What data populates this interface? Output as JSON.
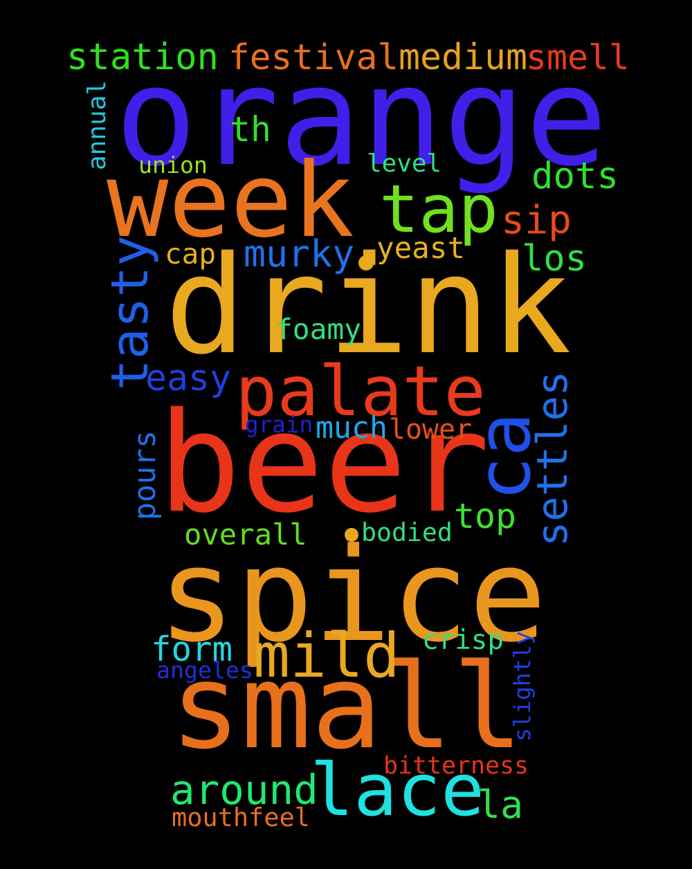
{
  "words": [
    {
      "id": "orange",
      "text": "orange",
      "color": "#4020e8"
    },
    {
      "id": "drink",
      "text": "drink",
      "color": "#e8a820"
    },
    {
      "id": "beer",
      "text": "beer",
      "color": "#e83418"
    },
    {
      "id": "spice",
      "text": "spice",
      "color": "#e8961e"
    },
    {
      "id": "small",
      "text": "small",
      "color": "#e8701c"
    },
    {
      "id": "week",
      "text": "week",
      "color": "#e87420"
    },
    {
      "id": "palate",
      "text": "palate",
      "color": "#e83a1c"
    },
    {
      "id": "lace",
      "text": "lace",
      "color": "#20e0e0"
    },
    {
      "id": "tap",
      "text": "tap",
      "color": "#70e020"
    },
    {
      "id": "mild",
      "text": "mild",
      "color": "#e8a820"
    },
    {
      "id": "ca",
      "text": "ca",
      "color": "#2050e8"
    },
    {
      "id": "tasty",
      "text": "tasty",
      "color": "#2060e8"
    },
    {
      "id": "settles",
      "text": "settles",
      "color": "#2070e8"
    },
    {
      "id": "station",
      "text": "station",
      "color": "#30e020"
    },
    {
      "id": "festival",
      "text": "festival",
      "color": "#e87020"
    },
    {
      "id": "medium",
      "text": "medium",
      "color": "#e8a020"
    },
    {
      "id": "smell",
      "text": "smell",
      "color": "#e83a1c"
    },
    {
      "id": "around",
      "text": "around",
      "color": "#20e870"
    },
    {
      "id": "murky",
      "text": "murky",
      "color": "#2070e8"
    },
    {
      "id": "top",
      "text": "top",
      "color": "#40e030"
    },
    {
      "id": "dots",
      "text": "dots",
      "color": "#30e030"
    },
    {
      "id": "sip",
      "text": "sip",
      "color": "#e84a1c"
    },
    {
      "id": "los",
      "text": "los",
      "color": "#30e040"
    },
    {
      "id": "la",
      "text": "la",
      "color": "#30e050"
    },
    {
      "id": "th",
      "text": "th",
      "color": "#30e030"
    },
    {
      "id": "form",
      "text": "form",
      "color": "#20d8e0"
    },
    {
      "id": "easy",
      "text": "easy",
      "color": "#2040e0"
    },
    {
      "id": "overall",
      "text": "overall",
      "color": "#60e020"
    },
    {
      "id": "yeast",
      "text": "yeast",
      "color": "#e8b020"
    },
    {
      "id": "much",
      "text": "much",
      "color": "#20a8e8"
    },
    {
      "id": "foamy",
      "text": "foamy",
      "color": "#30e080"
    },
    {
      "id": "crisp",
      "text": "crisp",
      "color": "#30e080"
    },
    {
      "id": "pours",
      "text": "pours",
      "color": "#2070e8"
    },
    {
      "id": "cap",
      "text": "cap",
      "color": "#e8b020"
    },
    {
      "id": "lower",
      "text": "lower",
      "color": "#e8501c"
    },
    {
      "id": "bodied",
      "text": "bodied",
      "color": "#30e080"
    },
    {
      "id": "mouthfeel",
      "text": "mouthfeel",
      "color": "#e87020"
    },
    {
      "id": "bitterness",
      "text": "bitterness",
      "color": "#e8341c"
    },
    {
      "id": "level",
      "text": "level",
      "color": "#30e080"
    },
    {
      "id": "union",
      "text": "union",
      "color": "#a0e020"
    },
    {
      "id": "angeles",
      "text": "angeles",
      "color": "#2030d8"
    },
    {
      "id": "grain",
      "text": "grain",
      "color": "#2020d0"
    },
    {
      "id": "annual",
      "text": "annual",
      "color": "#20c8e0"
    },
    {
      "id": "slightly",
      "text": "slightly",
      "color": "#2040e0"
    }
  ],
  "dots": [
    {
      "color": "#e8a820"
    },
    {
      "color": "#e8a820"
    }
  ]
}
